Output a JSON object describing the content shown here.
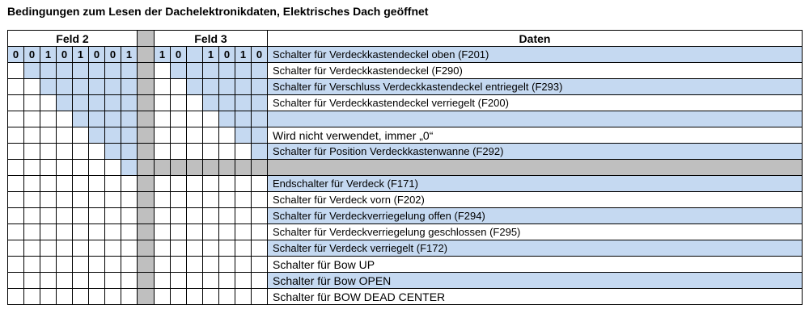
{
  "title": "Bedingungen zum Lesen der Dachelektronikdaten, Elektrisches Dach geöffnet",
  "headers": {
    "feld2": "Feld 2",
    "feld3": "Feld 3",
    "daten": "Daten"
  },
  "bits": [
    "0",
    "0",
    "1",
    "0",
    "1",
    "0",
    "0",
    "1",
    "1",
    "0",
    "",
    "1",
    "0",
    "1",
    "0"
  ],
  "colors": {
    "blue": "#c5d9f1",
    "gray": "#bfbfbf",
    "white": "#ffffff"
  },
  "rows": [
    "Schalter für Verdeckkastendeckel oben (F201)",
    "Schalter für Verdeckkastendeckel (F290)",
    "Schalter für Verschluss Verdeckkastendeckel entriegelt (F293)",
    "Schalter für Verdeckkastendeckel verriegelt (F200)",
    "",
    "Wird nicht verwendet, immer „0“",
    "Schalter für Position Verdeckkastenwanne (F292)",
    "",
    "Endschalter für Verdeck (F171)",
    "Schalter für Verdeck vorn (F202)",
    "Schalter für Verdeckverriegelung offen (F294)",
    "Schalter für Verdeckverriegelung geschlossen (F295)",
    "Schalter für Verdeck verriegelt (F172)",
    "Schalter für Bow UP",
    "Schalter für Bow OPEN",
    "Schalter für BOW DEAD CENTER"
  ]
}
